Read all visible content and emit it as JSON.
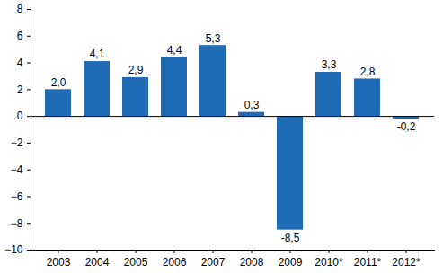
{
  "chart_data": {
    "type": "bar",
    "categories": [
      "2003",
      "2004",
      "2005",
      "2006",
      "2007",
      "2008",
      "2009",
      "2010*",
      "2011*",
      "2012*"
    ],
    "values": [
      2.0,
      4.1,
      2.9,
      4.4,
      5.3,
      0.3,
      -8.5,
      3.3,
      2.8,
      -0.2
    ],
    "value_labels": [
      "2,0",
      "4,1",
      "2,9",
      "4,4",
      "5,3",
      "0,3",
      "-8,5",
      "3,3",
      "2,8",
      "-0,2"
    ],
    "color": "#1f6bb5",
    "ylim": [
      -10,
      8
    ],
    "yticks": [
      -10,
      -8,
      -6,
      -4,
      -2,
      0,
      2,
      4,
      6,
      8
    ],
    "grid": false,
    "data_labels": true
  }
}
